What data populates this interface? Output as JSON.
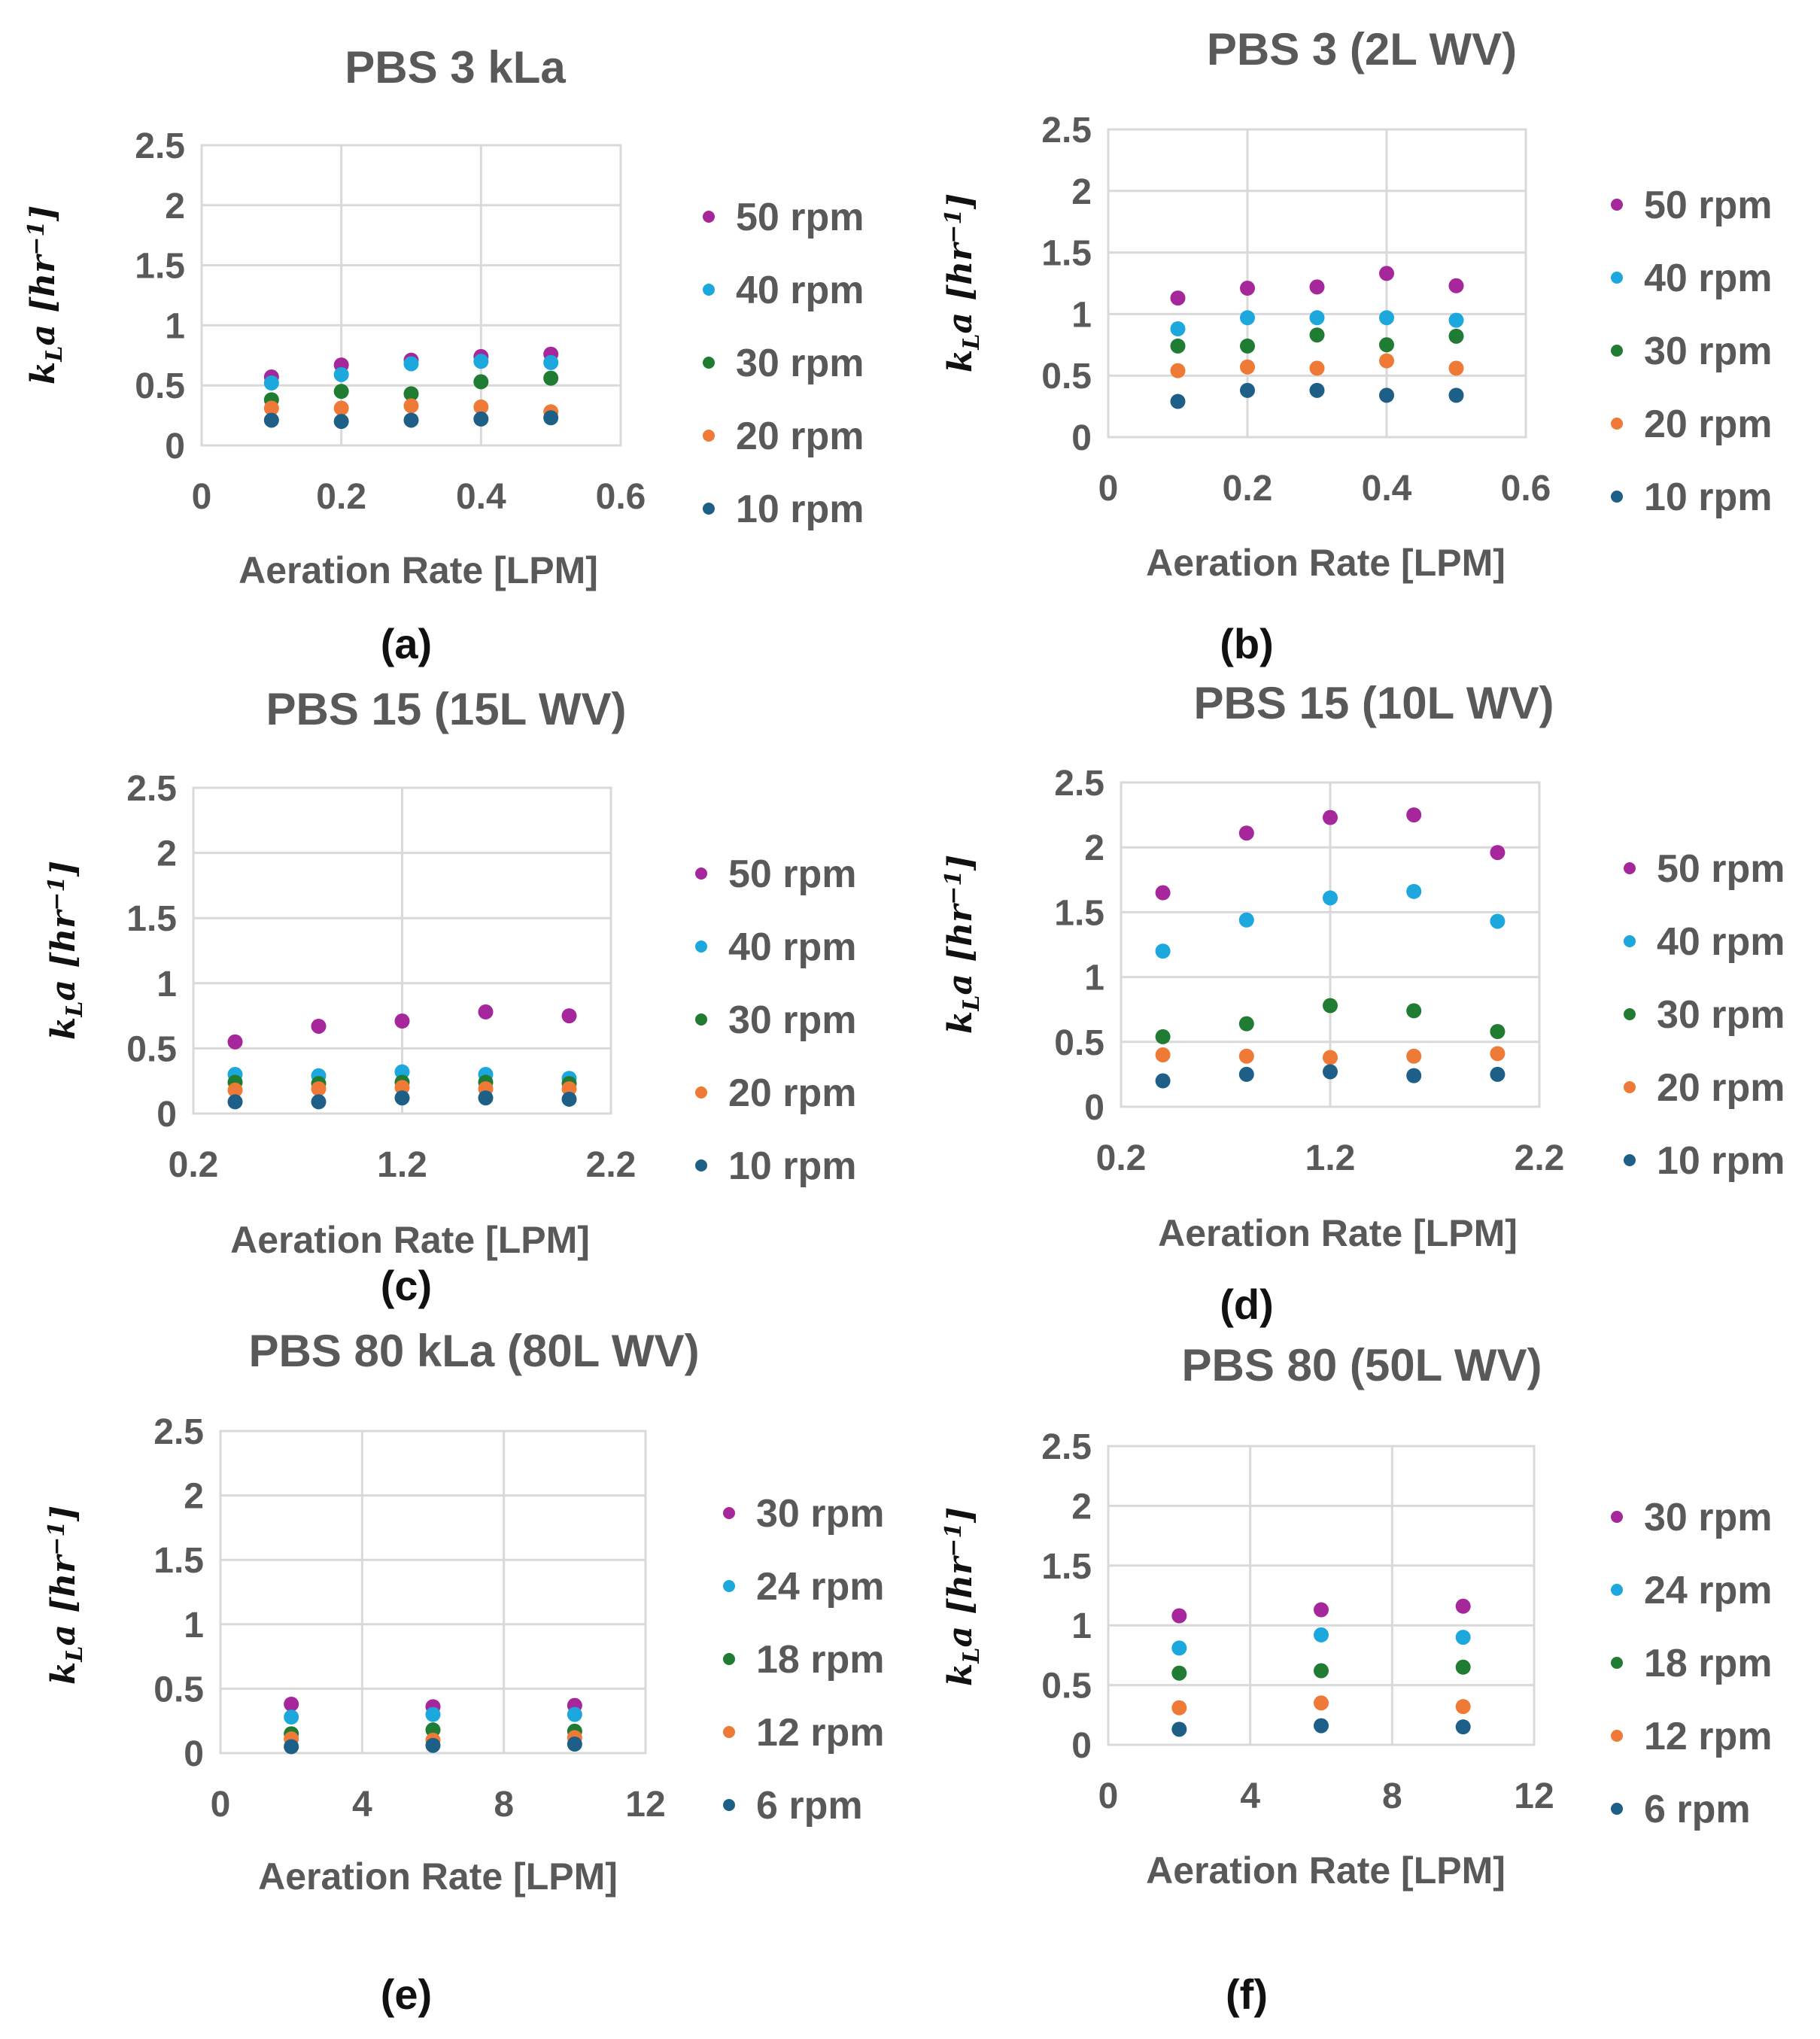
{
  "chart_data": [
    {
      "type": "scatter",
      "panel_label": "(a)",
      "title": "PBS 3 kLa",
      "xlabel": "Aeration Rate [LPM]",
      "ylabel": "kLa [hr-1]",
      "xlim": [
        0,
        0.6
      ],
      "ylim": [
        0,
        2.5
      ],
      "xticks": [
        0,
        0.2,
        0.4,
        0.6
      ],
      "xtick_labels": [
        "0",
        "0.2",
        "0.4",
        "0.6"
      ],
      "yticks": [
        0,
        0.5,
        1,
        1.5,
        2,
        2.5
      ],
      "ytick_labels": [
        "0",
        "0.5",
        "1",
        "1.5",
        "2",
        "2.5"
      ],
      "x": [
        0.1,
        0.2,
        0.3,
        0.4,
        0.5
      ],
      "series": [
        {
          "name": "50 rpm",
          "color": "#a5279b",
          "values": [
            0.57,
            0.67,
            0.71,
            0.74,
            0.76
          ]
        },
        {
          "name": "40 rpm",
          "color": "#1ca8dd",
          "values": [
            0.52,
            0.59,
            0.68,
            0.7,
            0.69
          ]
        },
        {
          "name": "30 rpm",
          "color": "#217c33",
          "values": [
            0.38,
            0.45,
            0.43,
            0.53,
            0.56
          ]
        },
        {
          "name": "20 rpm",
          "color": "#ef7a37",
          "values": [
            0.31,
            0.31,
            0.33,
            0.32,
            0.28
          ]
        },
        {
          "name": "10 rpm",
          "color": "#1d5f86",
          "values": [
            0.21,
            0.2,
            0.21,
            0.22,
            0.23
          ]
        }
      ]
    },
    {
      "type": "scatter",
      "panel_label": "(b)",
      "title": "PBS 3 (2L WV)",
      "xlabel": "Aeration Rate [LPM]",
      "ylabel": "kLa [hr-1]",
      "xlim": [
        0,
        0.6
      ],
      "ylim": [
        0,
        2.5
      ],
      "xticks": [
        0,
        0.2,
        0.4,
        0.6
      ],
      "xtick_labels": [
        "0",
        "0.2",
        "0.4",
        "0.6"
      ],
      "yticks": [
        0,
        0.5,
        1,
        1.5,
        2,
        2.5
      ],
      "ytick_labels": [
        "0",
        "0.5",
        "1",
        "1.5",
        "2",
        "2.5"
      ],
      "x": [
        0.1,
        0.2,
        0.3,
        0.4,
        0.5
      ],
      "series": [
        {
          "name": "50 rpm",
          "color": "#a5279b",
          "values": [
            1.13,
            1.21,
            1.22,
            1.33,
            1.23
          ]
        },
        {
          "name": "40 rpm",
          "color": "#1ca8dd",
          "values": [
            0.88,
            0.97,
            0.97,
            0.97,
            0.95
          ]
        },
        {
          "name": "30 rpm",
          "color": "#217c33",
          "values": [
            0.74,
            0.74,
            0.83,
            0.75,
            0.82
          ]
        },
        {
          "name": "20 rpm",
          "color": "#ef7a37",
          "values": [
            0.54,
            0.57,
            0.56,
            0.62,
            0.56
          ]
        },
        {
          "name": "10 rpm",
          "color": "#1d5f86",
          "values": [
            0.29,
            0.38,
            0.38,
            0.34,
            0.34
          ]
        }
      ]
    },
    {
      "type": "scatter",
      "panel_label": "(c)",
      "title": "PBS 15 (15L WV)",
      "xlabel": "Aeration Rate [LPM]",
      "ylabel": "kLa [hr-1]",
      "xlim": [
        0.2,
        2.2
      ],
      "ylim": [
        0,
        2.5
      ],
      "xticks": [
        0.2,
        1.2,
        2.2
      ],
      "xtick_labels": [
        "0.2",
        "1.2",
        "2.2"
      ],
      "yticks": [
        0,
        0.5,
        1,
        1.5,
        2,
        2.5
      ],
      "ytick_labels": [
        "0",
        "0.5",
        "1",
        "1.5",
        "2",
        "2.5"
      ],
      "x": [
        0.4,
        0.8,
        1.2,
        1.6,
        2.0
      ],
      "series": [
        {
          "name": "50 rpm",
          "color": "#a5279b",
          "values": [
            0.55,
            0.67,
            0.71,
            0.78,
            0.75
          ]
        },
        {
          "name": "40 rpm",
          "color": "#1ca8dd",
          "values": [
            0.3,
            0.29,
            0.32,
            0.3,
            0.27
          ]
        },
        {
          "name": "30 rpm",
          "color": "#217c33",
          "values": [
            0.24,
            0.23,
            0.24,
            0.24,
            0.23
          ]
        },
        {
          "name": "20 rpm",
          "color": "#ef7a37",
          "values": [
            0.18,
            0.19,
            0.2,
            0.19,
            0.19
          ]
        },
        {
          "name": "10 rpm",
          "color": "#1d5f86",
          "values": [
            0.09,
            0.09,
            0.12,
            0.12,
            0.11
          ]
        }
      ]
    },
    {
      "type": "scatter",
      "panel_label": "(d)",
      "title": "PBS 15 (10L WV)",
      "xlabel": "Aeration Rate [LPM]",
      "ylabel": "kLa [hr-1]",
      "xlim": [
        0.2,
        2.2
      ],
      "ylim": [
        0,
        2.5
      ],
      "xticks": [
        0.2,
        1.2,
        2.2
      ],
      "xtick_labels": [
        "0.2",
        "1.2",
        "2.2"
      ],
      "yticks": [
        0,
        0.5,
        1,
        1.5,
        2,
        2.5
      ],
      "ytick_labels": [
        "0",
        "0.5",
        "1",
        "1.5",
        "2",
        "2.5"
      ],
      "x": [
        0.4,
        0.8,
        1.2,
        1.6,
        2.0
      ],
      "series": [
        {
          "name": "50 rpm",
          "color": "#a5279b",
          "values": [
            1.65,
            2.11,
            2.23,
            2.25,
            1.96
          ]
        },
        {
          "name": "40 rpm",
          "color": "#1ca8dd",
          "values": [
            1.2,
            1.44,
            1.61,
            1.66,
            1.43
          ]
        },
        {
          "name": "30 rpm",
          "color": "#217c33",
          "values": [
            0.54,
            0.64,
            0.78,
            0.74,
            0.58
          ]
        },
        {
          "name": "20 rpm",
          "color": "#ef7a37",
          "values": [
            0.4,
            0.39,
            0.38,
            0.39,
            0.41
          ]
        },
        {
          "name": "10 rpm",
          "color": "#1d5f86",
          "values": [
            0.2,
            0.25,
            0.27,
            0.24,
            0.25
          ]
        }
      ]
    },
    {
      "type": "scatter",
      "panel_label": "(e)",
      "title": "PBS 80 kLa (80L WV)",
      "xlabel": "Aeration Rate [LPM]",
      "ylabel": "kLa [hr-1]",
      "xlim": [
        0,
        12
      ],
      "ylim": [
        0,
        2.5
      ],
      "xticks": [
        0,
        4,
        8,
        12
      ],
      "xtick_labels": [
        "0",
        "4",
        "8",
        "12"
      ],
      "yticks": [
        0,
        0.5,
        1,
        1.5,
        2,
        2.5
      ],
      "ytick_labels": [
        "0",
        "0.5",
        "1",
        "1.5",
        "2",
        "2.5"
      ],
      "x": [
        2,
        6,
        10
      ],
      "series": [
        {
          "name": "30 rpm",
          "color": "#a5279b",
          "values": [
            0.38,
            0.36,
            0.37
          ]
        },
        {
          "name": "24 rpm",
          "color": "#1ca8dd",
          "values": [
            0.28,
            0.3,
            0.3
          ]
        },
        {
          "name": "18 rpm",
          "color": "#217c33",
          "values": [
            0.15,
            0.18,
            0.17
          ]
        },
        {
          "name": "12 rpm",
          "color": "#ef7a37",
          "values": [
            0.11,
            0.1,
            0.12
          ]
        },
        {
          "name": "6 rpm",
          "color": "#1d5f86",
          "values": [
            0.05,
            0.06,
            0.07
          ]
        }
      ]
    },
    {
      "type": "scatter",
      "panel_label": "(f)",
      "title": "PBS 80 (50L WV)",
      "xlabel": "Aeration Rate [LPM]",
      "ylabel": "kLa [hr-1]",
      "xlim": [
        0,
        12
      ],
      "ylim": [
        0,
        2.5
      ],
      "xticks": [
        0,
        4,
        8,
        12
      ],
      "xtick_labels": [
        "0",
        "4",
        "8",
        "12"
      ],
      "yticks": [
        0,
        0.5,
        1,
        1.5,
        2,
        2.5
      ],
      "ytick_labels": [
        "0",
        "0.5",
        "1",
        "1.5",
        "2",
        "2.5"
      ],
      "x": [
        2,
        6,
        10
      ],
      "series": [
        {
          "name": "30 rpm",
          "color": "#a5279b",
          "values": [
            1.08,
            1.13,
            1.16
          ]
        },
        {
          "name": "24 rpm",
          "color": "#1ca8dd",
          "values": [
            0.81,
            0.92,
            0.9
          ]
        },
        {
          "name": "18 rpm",
          "color": "#217c33",
          "values": [
            0.6,
            0.62,
            0.65
          ]
        },
        {
          "name": "12 rpm",
          "color": "#ef7a37",
          "values": [
            0.31,
            0.35,
            0.32
          ]
        },
        {
          "name": "6 rpm",
          "color": "#1d5f86",
          "values": [
            0.13,
            0.16,
            0.15
          ]
        }
      ]
    }
  ]
}
